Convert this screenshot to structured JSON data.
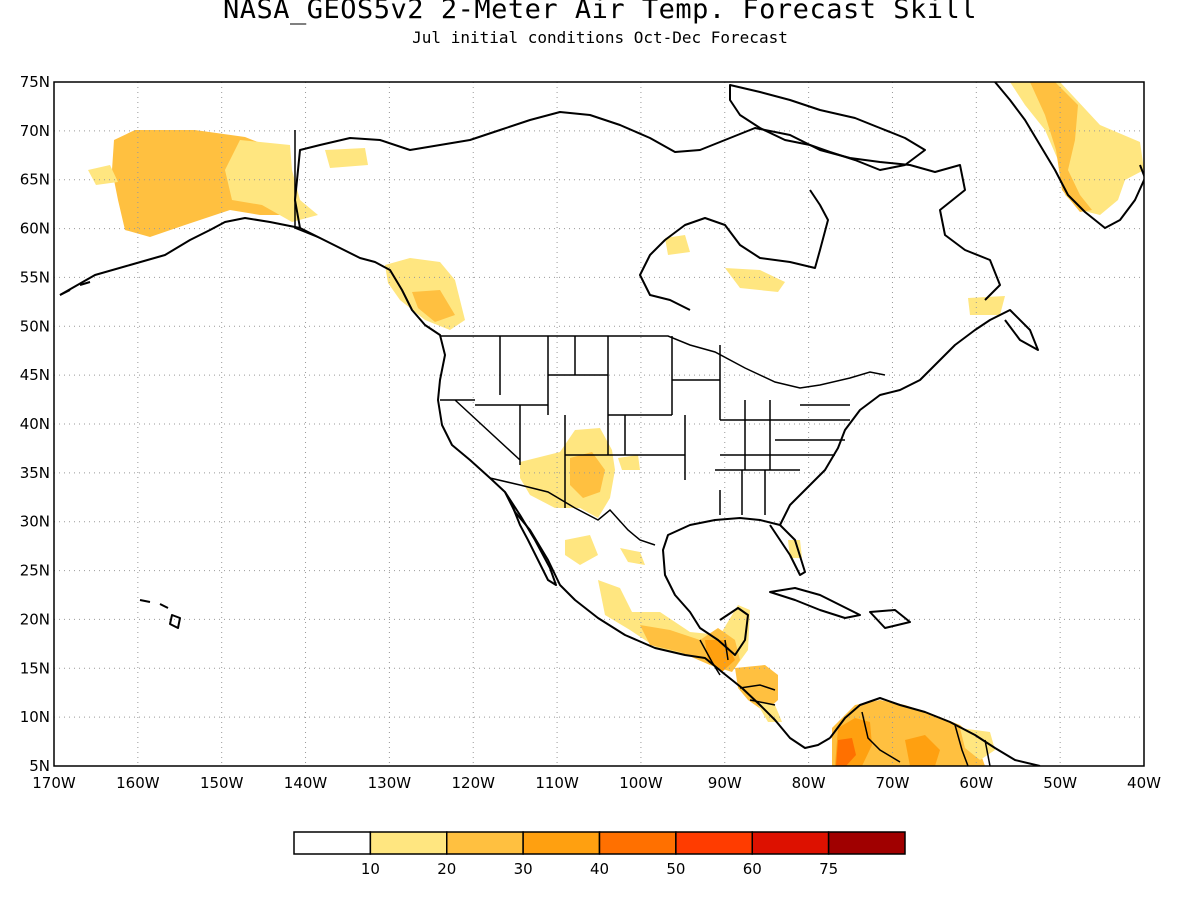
{
  "title": "NASA_GEOS5v2 2-Meter Air Temp. Forecast Skill",
  "subtitle": "Jul initial conditions  Oct-Dec Forecast",
  "axes": {
    "lat_labels": [
      "5N",
      "10N",
      "15N",
      "20N",
      "25N",
      "30N",
      "35N",
      "40N",
      "45N",
      "50N",
      "55N",
      "60N",
      "65N",
      "70N",
      "75N"
    ],
    "lon_labels": [
      "170W",
      "160W",
      "150W",
      "140W",
      "130W",
      "120W",
      "110W",
      "100W",
      "90W",
      "80W",
      "70W",
      "60W",
      "50W",
      "40W"
    ],
    "lat_range": [
      5,
      75
    ],
    "lon_range": [
      -170,
      -40
    ],
    "grid": "dotted"
  },
  "colorbar": {
    "colors": [
      "#ffffff",
      "#ffe680",
      "#ffc040",
      "#ffa010",
      "#ff7000",
      "#ff3c00",
      "#dd1100",
      "#a00000"
    ],
    "tick_labels": [
      "10",
      "20",
      "30",
      "40",
      "50",
      "60",
      "75"
    ]
  },
  "skill_regions": [
    {
      "name": "alaska",
      "color": "#ffc040"
    },
    {
      "name": "yukon",
      "color": "#ffe680"
    },
    {
      "name": "british-columbia",
      "color": "#ffe680"
    },
    {
      "name": "us-southwest",
      "color": "#ffe680"
    },
    {
      "name": "mexico",
      "color": "#ffe680"
    },
    {
      "name": "central-america",
      "color": "#ffc040"
    },
    {
      "name": "northern-south-america",
      "color": "#ffc040"
    },
    {
      "name": "greenland",
      "color": "#ffe680"
    }
  ]
}
